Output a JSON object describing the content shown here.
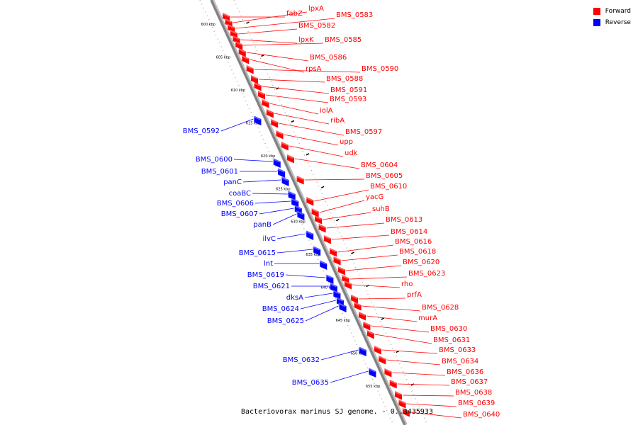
{
  "title": "Bacteriovorax marinus SJ genome. - 0..3435933",
  "legend": [
    {
      "label": "Forward",
      "color": "#ff0000"
    },
    {
      "label": "Reverse",
      "color": "#0000ff"
    }
  ],
  "colors": {
    "forward": "#ff0000",
    "reverse": "#0000ff",
    "backbone": "#808080"
  },
  "ticks": [
    {
      "label": "600 kbp",
      "kbp": 600
    },
    {
      "label": "605 kbp",
      "kbp": 605
    },
    {
      "label": "610 kbp",
      "kbp": 610
    },
    {
      "label": "615 kbp",
      "kbp": 615
    },
    {
      "label": "620 kbp",
      "kbp": 620
    },
    {
      "label": "625 kbp",
      "kbp": 625
    },
    {
      "label": "630 kbp",
      "kbp": 630
    },
    {
      "label": "635 kbp",
      "kbp": 635
    },
    {
      "label": "640 kbp",
      "kbp": 640
    },
    {
      "label": "645 kbp",
      "kbp": 645
    },
    {
      "label": "650 kbp",
      "kbp": 650
    },
    {
      "label": "655 kbp",
      "kbp": 655
    }
  ],
  "forward_genes": [
    "fabZ",
    "lpxA",
    "BMS_0583",
    "BMS_0582",
    "lpxK",
    "BMS_0585",
    "BMS_0586",
    "rpsA",
    "BMS_0590",
    "BMS_0588",
    "BMS_0591",
    "BMS_0593",
    "iolA",
    "ribA",
    "BMS_0597",
    "upp",
    "udk",
    "BMS_0604",
    "BMS_0605",
    "BMS_0610",
    "yacG",
    "suhB",
    "BMS_0613",
    "BMS_0614",
    "BMS_0616",
    "BMS_0618",
    "BMS_0620",
    "BMS_0623",
    "rho",
    "prfA",
    "BMS_0628",
    "murA",
    "BMS_0630",
    "BMS_0631",
    "BMS_0633",
    "BMS_0634",
    "BMS_0636",
    "BMS_0637",
    "BMS_0638",
    "BMS_0639",
    "BMS_0640"
  ],
  "reverse_genes": [
    "BMS_0592",
    "BMS_0600",
    "BMS_0601",
    "panC",
    "coaBC",
    "BMS_0606",
    "BMS_0607",
    "panB",
    "ilvC",
    "BMS_0615",
    "lnt",
    "BMS_0619",
    "BMS_0621",
    "dksA",
    "BMS_0624",
    "BMS_0625",
    "BMS_0632",
    "BMS_0635"
  ]
}
